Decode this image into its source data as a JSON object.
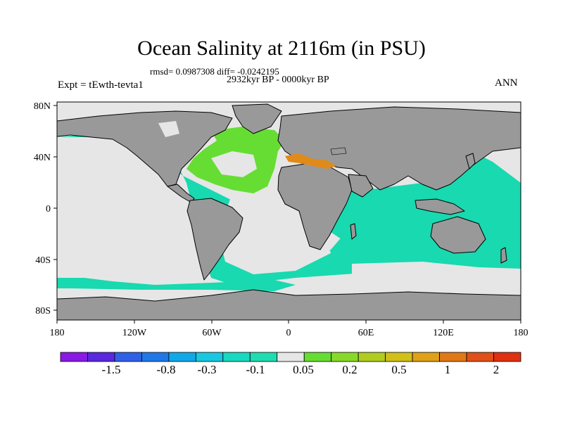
{
  "title": "Ocean Salinity at 2116m (in PSU)",
  "stats": "rmsd= 0.0987308 diff= -0.0242195",
  "period": "2932kyr BP - 0000kyr BP",
  "experiment": "Expt = tEwth-tevta1",
  "season": "ANN",
  "map": {
    "projection": "cylindrical-equidistant",
    "lon_range": [
      -180,
      180
    ],
    "lat_range": [
      -90,
      90
    ],
    "x_ticks": [
      "180",
      "120W",
      "60W",
      "0",
      "60E",
      "120E",
      "180"
    ],
    "y_ticks": [
      "80N",
      "40N",
      "0",
      "40S",
      "80S"
    ],
    "land_color": "#999999",
    "coastline_color": "#000000",
    "regions": [
      {
        "name": "north-atlantic-positive",
        "class": "0.05 to 0.2",
        "color": "#66dd33"
      },
      {
        "name": "mediterranean-positive",
        "class": "0.5 to 1",
        "color": "#e08a1a"
      },
      {
        "name": "south-atlantic-near-zero",
        "class": "-0.1 to 0.05",
        "color": "#e6e6e6"
      },
      {
        "name": "pacific-indian-negative",
        "class": "-0.1 to 0",
        "color": "#18d9b0"
      },
      {
        "name": "arctic-near-zero",
        "class": "-0.1 to 0.05",
        "color": "#e6e6e6"
      }
    ]
  },
  "colorbar": {
    "colors": [
      "#8a1ae6",
      "#5a28e0",
      "#3060e8",
      "#2078e8",
      "#10a8e8",
      "#18c8e0",
      "#18d9c0",
      "#20dcb0",
      "#e6e6e6",
      "#66dd33",
      "#88d82a",
      "#b0cc20",
      "#d0c018",
      "#e0a018",
      "#e07818",
      "#e05018",
      "#e03010"
    ],
    "labels": [
      "-1.5",
      "-0.8",
      "-0.3",
      "-0.1",
      "0.05",
      "0.2",
      "0.5",
      "1",
      "2"
    ]
  }
}
